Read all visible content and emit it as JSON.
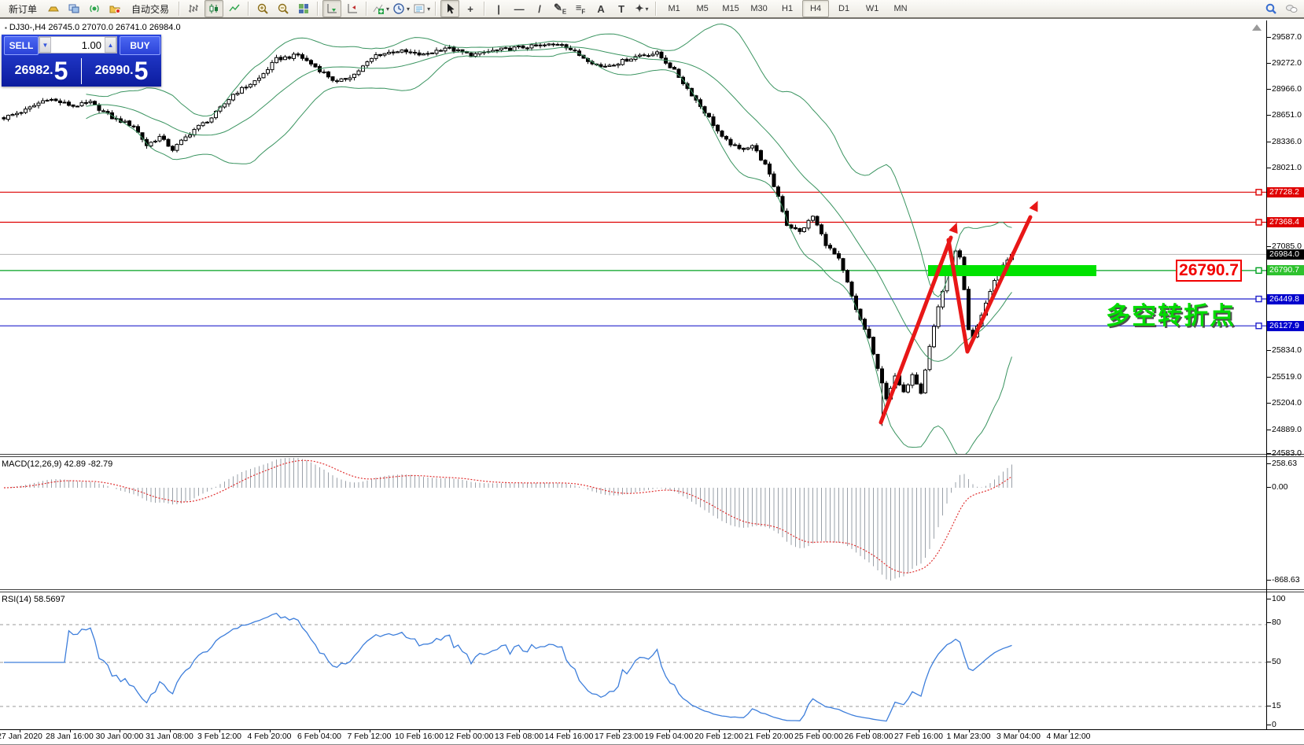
{
  "toolbar": {
    "items": [
      {
        "t": "btn",
        "name": "new-order-button",
        "label": "新订单"
      },
      {
        "t": "svg",
        "name": "ingot-icon"
      },
      {
        "t": "svg",
        "name": "terminals-icon"
      },
      {
        "t": "svg",
        "name": "signal-icon"
      },
      {
        "t": "svg",
        "name": "data-folder-icon"
      },
      {
        "t": "btn",
        "name": "auto-trading-button",
        "label": "自动交易"
      },
      {
        "t": "sep"
      },
      {
        "t": "svg",
        "name": "bar-chart-icon"
      },
      {
        "t": "svg",
        "name": "candlestick-chart-icon",
        "active": true
      },
      {
        "t": "svg",
        "name": "line-chart-icon"
      },
      {
        "t": "sep"
      },
      {
        "t": "svg",
        "name": "zoom-in-icon"
      },
      {
        "t": "svg",
        "name": "zoom-out-icon"
      },
      {
        "t": "svg",
        "name": "tile-windows-icon"
      },
      {
        "t": "sep"
      },
      {
        "t": "svg",
        "name": "auto-scroll-icon",
        "active": true
      },
      {
        "t": "svg",
        "name": "chart-shift-icon"
      },
      {
        "t": "sep"
      },
      {
        "t": "svg",
        "name": "indicators-icon",
        "dd": true
      },
      {
        "t": "svg",
        "name": "periods-icon",
        "dd": true
      },
      {
        "t": "svg",
        "name": "templates-icon",
        "dd": true
      },
      {
        "t": "sep"
      },
      {
        "t": "svg",
        "name": "cursor-icon",
        "active": true
      },
      {
        "t": "glyph",
        "name": "crosshair-icon",
        "glyph": "+"
      },
      {
        "t": "sep"
      },
      {
        "t": "glyph",
        "name": "vertical-line-icon",
        "glyph": "|"
      },
      {
        "t": "glyph",
        "name": "horizontal-line-icon",
        "glyph": "—"
      },
      {
        "t": "glyph",
        "name": "trendline-icon",
        "glyph": "/"
      },
      {
        "t": "glyph",
        "name": "equidistant-channel-icon",
        "glyph": "✎",
        "sub": "E"
      },
      {
        "t": "glyph",
        "name": "fibonacci-icon",
        "glyph": "≡",
        "sub": "F"
      },
      {
        "t": "glyph",
        "name": "text-icon",
        "glyph": "A"
      },
      {
        "t": "glyph",
        "name": "text-label-icon",
        "glyph": "T"
      },
      {
        "t": "glyph",
        "name": "arrows-icon",
        "glyph": "✦",
        "dd": true
      },
      {
        "t": "sep"
      },
      {
        "t": "tf",
        "label": "M1"
      },
      {
        "t": "tf",
        "label": "M5"
      },
      {
        "t": "tf",
        "label": "M15"
      },
      {
        "t": "tf",
        "label": "M30"
      },
      {
        "t": "tf",
        "label": "H1"
      },
      {
        "t": "tf",
        "label": "H4",
        "active": true
      },
      {
        "t": "tf",
        "label": "D1"
      },
      {
        "t": "tf",
        "label": "W1"
      },
      {
        "t": "tf",
        "label": "MN"
      },
      {
        "t": "spring"
      },
      {
        "t": "svg",
        "name": "search-icon"
      },
      {
        "t": "svg",
        "name": "chat-icon"
      }
    ],
    "active_timeframe": "H4"
  },
  "chart": {
    "symbol_line": "DJ30-,H4  26745.0 27070.0 26741.0 26984.0",
    "symbol": "DJ30-",
    "timeframe": "H4"
  },
  "trade_panel": {
    "sell_label": "SELL",
    "buy_label": "BUY",
    "volume": "1.00",
    "dec_glyph": "▼",
    "inc_glyph": "▲",
    "sell_price_main": "26982",
    "sell_price_sep": ".",
    "sell_price_big": "5",
    "buy_price_main": "26990",
    "buy_price_sep": ".",
    "buy_price_big": "5"
  },
  "price_axis": {
    "ticks": [
      {
        "label": "29587.0",
        "price": 29587.0
      },
      {
        "label": "29272.0",
        "price": 29272.0
      },
      {
        "label": "28966.0",
        "price": 28966.0
      },
      {
        "label": "28651.0",
        "price": 28651.0
      },
      {
        "label": "28336.0",
        "price": 28336.0
      },
      {
        "label": "28021.0",
        "price": 28021.0
      },
      {
        "label": "27085.0",
        "price": 27085.0
      },
      {
        "label": "25834.0",
        "price": 25834.0
      },
      {
        "label": "25519.0",
        "price": 25519.0
      },
      {
        "label": "25204.0",
        "price": 25204.0
      },
      {
        "label": "24889.0",
        "price": 24889.0
      },
      {
        "label": "24583.0",
        "price": 24583.0
      }
    ],
    "levels": [
      {
        "label": "27728.2",
        "price": 27728.2,
        "color": "#e00000",
        "line": "#dd0000",
        "kind": "resistance"
      },
      {
        "label": "27368.4",
        "price": 27368.4,
        "color": "#e00000",
        "line": "#dd0000",
        "kind": "resistance"
      },
      {
        "label": "26984.0",
        "price": 26984.0,
        "color": "#000000",
        "line": "#b4b4b4",
        "kind": "current-price"
      },
      {
        "label": "26790.7",
        "price": 26790.7,
        "color": "#2ec22e",
        "line": "#00a020",
        "kind": "pivot"
      },
      {
        "label": "26449.8",
        "price": 26449.8,
        "color": "#0000cd",
        "line": "#2222cc",
        "kind": "support"
      },
      {
        "label": "26127.9",
        "price": 26127.9,
        "color": "#0000cd",
        "line": "#2222cc",
        "kind": "support"
      }
    ]
  },
  "macd_panel": {
    "label": "MACD(12,26,9) 42.89 -82.79",
    "ticks": [
      "258.63",
      "0.00",
      "-868.63"
    ]
  },
  "rsi_panel": {
    "label": "RSI(14) 58.5697",
    "ticks": [
      "100",
      "80",
      "50",
      "15",
      "0"
    ],
    "levels": [
      80,
      50,
      15
    ]
  },
  "time_axis": {
    "labels": [
      "27 Jan 2020",
      "28 Jan 16:00",
      "30 Jan 00:00",
      "31 Jan 08:00",
      "3 Feb 12:00",
      "4 Feb 20:00",
      "6 Feb 04:00",
      "7 Feb 12:00",
      "10 Feb 16:00",
      "12 Feb 00:00",
      "13 Feb 08:00",
      "14 Feb 16:00",
      "17 Feb 23:00",
      "19 Feb 04:00",
      "20 Feb 12:00",
      "21 Feb 20:00",
      "25 Feb 00:00",
      "26 Feb 08:00",
      "27 Feb 16:00",
      "1 Mar 23:00",
      "3 Mar 04:00",
      "4 Mar 12:00"
    ]
  },
  "annotations": {
    "price_tag": "26790.7",
    "turning_point_text": "多空转折点",
    "arrow_color": "#e81717",
    "highlight_green": "#00e200"
  },
  "chart_data": {
    "type": "candlestick",
    "symbol": "DJ30-",
    "timeframe": "H4",
    "ohlc_display": {
      "open": "26745.0",
      "high": "27070.0",
      "low": "26741.0",
      "close": "26984.0"
    },
    "bid": "26982.5",
    "ask": "26990.5",
    "y_axis_range": [
      24450,
      29780
    ],
    "candle_count": 234,
    "price_waypoints": [
      [
        0,
        28620
      ],
      [
        5,
        28710
      ],
      [
        10,
        28850
      ],
      [
        16,
        28760
      ],
      [
        20,
        28800
      ],
      [
        25,
        28620
      ],
      [
        30,
        28520
      ],
      [
        33,
        28290
      ],
      [
        36,
        28390
      ],
      [
        39,
        28240
      ],
      [
        44,
        28480
      ],
      [
        48,
        28620
      ],
      [
        53,
        28900
      ],
      [
        59,
        29090
      ],
      [
        63,
        29320
      ],
      [
        68,
        29370
      ],
      [
        72,
        29230
      ],
      [
        77,
        29040
      ],
      [
        81,
        29140
      ],
      [
        86,
        29370
      ],
      [
        91,
        29420
      ],
      [
        97,
        29370
      ],
      [
        102,
        29460
      ],
      [
        108,
        29370
      ],
      [
        113,
        29420
      ],
      [
        119,
        29460
      ],
      [
        124,
        29480
      ],
      [
        129,
        29510
      ],
      [
        133,
        29370
      ],
      [
        138,
        29230
      ],
      [
        142,
        29280
      ],
      [
        147,
        29370
      ],
      [
        151,
        29390
      ],
      [
        155,
        29180
      ],
      [
        159,
        28900
      ],
      [
        163,
        28620
      ],
      [
        166,
        28380
      ],
      [
        170,
        28240
      ],
      [
        173,
        28290
      ],
      [
        176,
        28050
      ],
      [
        179,
        27680
      ],
      [
        181,
        27340
      ],
      [
        184,
        27250
      ],
      [
        187,
        27440
      ],
      [
        190,
        27110
      ],
      [
        193,
        26920
      ],
      [
        195,
        26640
      ],
      [
        197,
        26310
      ],
      [
        200,
        25980
      ],
      [
        202,
        25600
      ],
      [
        204,
        25270
      ],
      [
        206,
        25510
      ],
      [
        208,
        25320
      ],
      [
        210,
        25560
      ],
      [
        212,
        25340
      ],
      [
        214,
        25880
      ],
      [
        216,
        26360
      ],
      [
        218,
        26730
      ],
      [
        220,
        27010
      ],
      [
        221,
        26940
      ],
      [
        222,
        26540
      ],
      [
        223,
        26070
      ],
      [
        224,
        25980
      ],
      [
        226,
        26260
      ],
      [
        228,
        26540
      ],
      [
        230,
        26780
      ],
      [
        232,
        26920
      ],
      [
        233,
        26984
      ]
    ],
    "spike_low": {
      "index": 203,
      "price": 24930
    },
    "indicators": [
      {
        "name": "Bollinger Bands",
        "color": "#3a9460"
      },
      {
        "name": "MACD",
        "params": "12,26,9",
        "values": [
          "42.89",
          "-82.79"
        ],
        "axis": [
          "258.63",
          "0.00",
          "-868.63"
        ]
      },
      {
        "name": "RSI",
        "params": "14",
        "value": "58.5697",
        "axis": [
          100,
          80,
          50,
          15,
          0
        ]
      }
    ]
  }
}
